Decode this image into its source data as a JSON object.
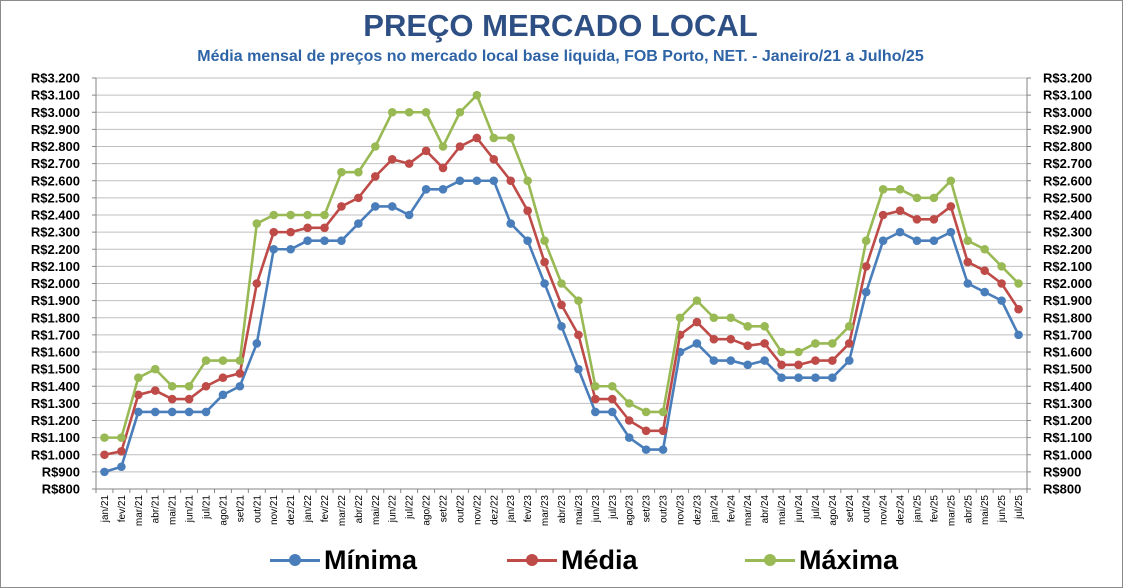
{
  "title": "PREÇO MERCADO LOCAL",
  "subtitle": "Média mensal de preços no mercado local base liquida, FOB Porto, NET. - Janeiro/21 a Julho/25",
  "chart_data": {
    "type": "line",
    "title": "PREÇO MERCADO LOCAL",
    "subtitle": "Média mensal de preços no mercado local base liquida, FOB Porto, NET. - Janeiro/21 a Julho/25",
    "xlabel": "",
    "ylabel": "",
    "ylim": [
      800,
      3200
    ],
    "ystep": 100,
    "yticks": [
      "R$800",
      "R$900",
      "R$1.000",
      "R$1.100",
      "R$1.200",
      "R$1.300",
      "R$1.400",
      "R$1.500",
      "R$1.600",
      "R$1.700",
      "R$1.800",
      "R$1.900",
      "R$2.000",
      "R$2.100",
      "R$2.200",
      "R$2.300",
      "R$2.400",
      "R$2.500",
      "R$2.600",
      "R$2.700",
      "R$2.800",
      "R$2.900",
      "R$3.000",
      "R$3.100",
      "R$3.200"
    ],
    "grid": true,
    "secondary_axis_mirror": true,
    "legend_position": "bottom",
    "categories": [
      "jan/21",
      "fev/21",
      "mar/21",
      "abr/21",
      "mai/21",
      "jun/21",
      "jul/21",
      "ago/21",
      "set/21",
      "out/21",
      "nov/21",
      "dez/21",
      "jan/22",
      "fev/22",
      "mar/22",
      "abr/22",
      "mai/22",
      "jun/22",
      "jul/22",
      "ago/22",
      "set/22",
      "out/22",
      "nov/22",
      "dez/22",
      "jan/23",
      "fev/23",
      "mar/23",
      "abr/23",
      "mai/23",
      "jun/23",
      "jul/23",
      "ago/23",
      "set/23",
      "out/23",
      "nov/23",
      "dez/23",
      "jan/24",
      "fev/24",
      "mar/24",
      "abr/24",
      "mai/24",
      "jun/24",
      "jul/24",
      "ago/24",
      "set/24",
      "out/24",
      "nov/24",
      "dez/24",
      "jan/25",
      "fev/25",
      "mar/25",
      "abr/25",
      "mai/25",
      "jun/25",
      "jul/25"
    ],
    "series": [
      {
        "name": "Mínima",
        "color": "#4a7ebb",
        "values": [
          900,
          930,
          1250,
          1250,
          1250,
          1250,
          1250,
          1350,
          1400,
          1650,
          2200,
          2200,
          2250,
          2250,
          2250,
          2350,
          2450,
          2450,
          2400,
          2550,
          2550,
          2600,
          2600,
          2600,
          2350,
          2250,
          2000,
          1750,
          1500,
          1250,
          1250,
          1100,
          1030,
          1030,
          1600,
          1650,
          1550,
          1550,
          1525,
          1550,
          1450,
          1450,
          1450,
          1450,
          1550,
          1950,
          2250,
          2300,
          2250,
          2250,
          2300,
          2000,
          1950,
          1900,
          1700
        ]
      },
      {
        "name": "Média",
        "color": "#be4b48",
        "values": [
          1000,
          1020,
          1350,
          1375,
          1325,
          1325,
          1400,
          1450,
          1475,
          2000,
          2300,
          2300,
          2325,
          2325,
          2450,
          2500,
          2625,
          2725,
          2700,
          2775,
          2675,
          2800,
          2850,
          2725,
          2600,
          2425,
          2125,
          1875,
          1700,
          1325,
          1325,
          1200,
          1140,
          1140,
          1700,
          1775,
          1675,
          1675,
          1637,
          1650,
          1525,
          1525,
          1550,
          1550,
          1650,
          2100,
          2400,
          2425,
          2375,
          2375,
          2450,
          2125,
          2075,
          2000,
          1850
        ]
      },
      {
        "name": "Máxima",
        "color": "#98b954",
        "values": [
          1100,
          1100,
          1450,
          1500,
          1400,
          1400,
          1550,
          1550,
          1550,
          2350,
          2400,
          2400,
          2400,
          2400,
          2650,
          2650,
          2800,
          3000,
          3000,
          3000,
          2800,
          3000,
          3100,
          2850,
          2850,
          2600,
          2250,
          2000,
          1900,
          1400,
          1400,
          1300,
          1250,
          1250,
          1800,
          1900,
          1800,
          1800,
          1750,
          1750,
          1600,
          1600,
          1650,
          1650,
          1750,
          2250,
          2550,
          2550,
          2500,
          2500,
          2600,
          2250,
          2200,
          2100,
          2000
        ]
      }
    ]
  }
}
